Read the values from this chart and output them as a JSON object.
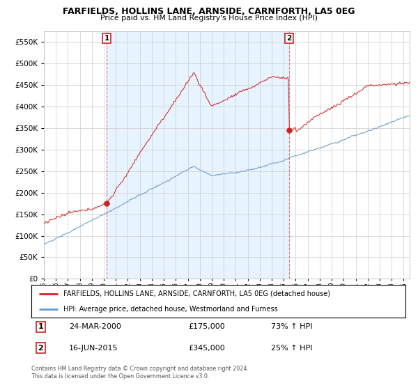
{
  "title": "FARFIELDS, HOLLINS LANE, ARNSIDE, CARNFORTH, LA5 0EG",
  "subtitle": "Price paid vs. HM Land Registry's House Price Index (HPI)",
  "red_label": "FARFIELDS, HOLLINS LANE, ARNSIDE, CARNFORTH, LA5 0EG (detached house)",
  "blue_label": "HPI: Average price, detached house, Westmorland and Furness",
  "sale1_date": "24-MAR-2000",
  "sale1_price": 175000,
  "sale1_pct": "73%",
  "sale2_date": "16-JUN-2015",
  "sale2_price": 345000,
  "sale2_pct": "25%",
  "footnote": "Contains HM Land Registry data © Crown copyright and database right 2024.\nThis data is licensed under the Open Government Licence v3.0.",
  "sale1_x": 2000.23,
  "sale2_x": 2015.46,
  "ylim_max": 575000,
  "ylim_min": 0,
  "xlim_start": 1995.0,
  "xlim_end": 2025.5,
  "shade_color": "#ddeeff",
  "plot_bg": "#ffffff",
  "grid_color": "#cccccc",
  "red_color": "#cc2222",
  "blue_color": "#6699cc",
  "vline_color": "#dd4444",
  "shade_alpha": 0.5
}
